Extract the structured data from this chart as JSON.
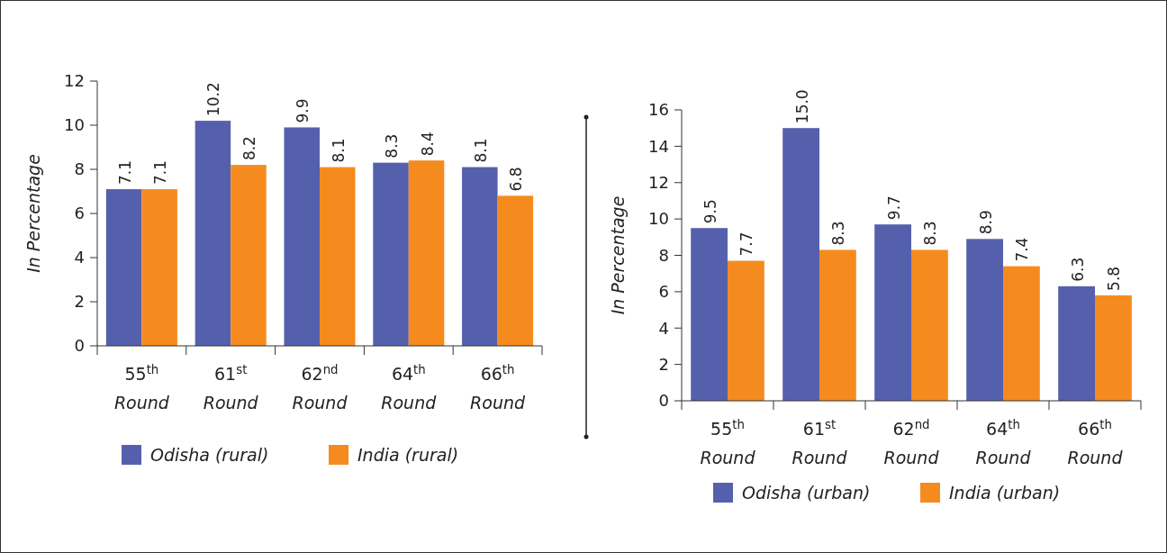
{
  "chart_data": [
    {
      "type": "bar",
      "ylabel": "In Percentage",
      "categories": [
        "55$^{th}$ Round",
        "61$^{st}$ Round",
        "62$^{nd}$ Round",
        "64$^{th}$ Round",
        "66$^{th}$ Round"
      ],
      "series": [
        {
          "name": "Odisha (rural)",
          "color": "#5560ad",
          "values": [
            7.1,
            10.2,
            9.9,
            8.3,
            8.1
          ]
        },
        {
          "name": "India (rural)",
          "color": "#f58b1f",
          "values": [
            7.1,
            8.2,
            8.1,
            8.4,
            6.8
          ]
        }
      ],
      "ylim": [
        0,
        12
      ],
      "yticks": [
        0,
        2,
        4,
        6,
        8,
        10,
        12
      ],
      "data_labels": true,
      "legend": "bottom",
      "grid": false
    },
    {
      "type": "bar",
      "ylabel": "In Percentage",
      "categories": [
        "55$^{th}$ Round",
        "61$^{st}$ Round",
        "62$^{nd}$ Round",
        "64$^{th}$ Round",
        "66$^{th}$ Round"
      ],
      "series": [
        {
          "name": "Odisha (urban)",
          "color": "#5560ad",
          "values": [
            9.5,
            15.0,
            9.7,
            8.9,
            6.3
          ],
          "value_labels": [
            "9.5",
            "15.0",
            "9.7",
            "8.9",
            "6.3"
          ]
        },
        {
          "name": "India (urban)",
          "color": "#f58b1f",
          "values": [
            7.7,
            8.3,
            8.3,
            7.4,
            5.8
          ],
          "value_labels": [
            "7.7",
            "8.3",
            "8.3",
            "7.4",
            "5.8"
          ]
        }
      ],
      "ylim": [
        0,
        16
      ],
      "yticks": [
        0,
        2,
        4,
        6,
        8,
        10,
        12,
        14,
        16
      ],
      "legend": "bottom",
      "grid": false
    }
  ]
}
